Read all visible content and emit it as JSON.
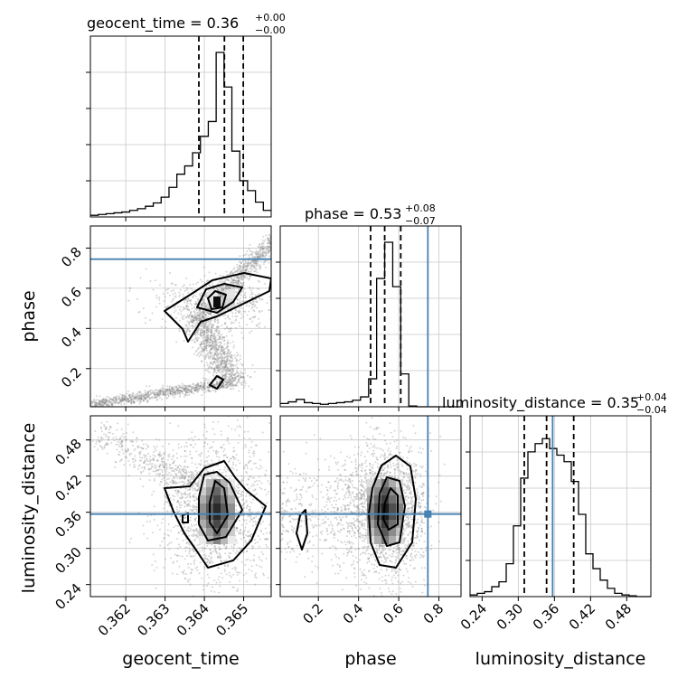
{
  "chart_data": {
    "type": "corner",
    "parameters": [
      "geocent_time",
      "phase",
      "luminosity_distance"
    ],
    "truths": {
      "geocent_time": null,
      "phase": 0.745,
      "luminosity_distance": 0.357
    },
    "titles": [
      {
        "parameter": "geocent_time",
        "text": "geocent_time = 0.36",
        "sup": "+0.00",
        "sub": "−0.00"
      },
      {
        "parameter": "phase",
        "text": "phase = 0.53",
        "sup": "+0.08",
        "sub": "−0.07"
      },
      {
        "parameter": "luminosity_distance",
        "text": "luminosity_distance = 0.35",
        "sup": "+0.04",
        "sub": "−0.04"
      }
    ],
    "axes": {
      "geocent_time": {
        "range": [
          0.3611,
          0.3657
        ],
        "ticks": [
          "0.362",
          "0.363",
          "0.364",
          "0.365"
        ],
        "tick_values": [
          0.362,
          0.363,
          0.364,
          0.365
        ],
        "label": "geocent_time"
      },
      "phase": {
        "range": [
          0.01,
          0.91
        ],
        "ticks": [
          "0.2",
          "0.4",
          "0.6",
          "0.8"
        ],
        "tick_values": [
          0.2,
          0.4,
          0.6,
          0.8
        ],
        "label": "phase"
      },
      "luminosity_distance": {
        "range": [
          0.22,
          0.52
        ],
        "ticks": [
          "0.24",
          "0.30",
          "0.36",
          "0.42",
          "0.48"
        ],
        "tick_values": [
          0.24,
          0.3,
          0.36,
          0.42,
          0.48
        ],
        "label": "luminosity_distance"
      }
    },
    "histograms": {
      "geocent_time": {
        "quantiles": [
          0.36386,
          0.36451,
          0.36499
        ],
        "bin_edges": [
          0.3611,
          0.3613,
          0.3615,
          0.3617,
          0.3619,
          0.3621,
          0.3623,
          0.3625,
          0.3627,
          0.3629,
          0.3631,
          0.3633,
          0.3635,
          0.3637,
          0.3639,
          0.3641,
          0.3643,
          0.3645,
          0.3647,
          0.3649,
          0.3651,
          0.3653,
          0.3655,
          0.3657
        ],
        "counts": [
          0.01,
          0.015,
          0.02,
          0.025,
          0.03,
          0.04,
          0.05,
          0.065,
          0.085,
          0.12,
          0.18,
          0.26,
          0.31,
          0.39,
          0.49,
          0.58,
          1.0,
          0.79,
          0.4,
          0.22,
          0.16,
          0.09,
          0.04
        ]
      },
      "phase": {
        "quantiles": [
          0.46,
          0.53,
          0.61
        ],
        "bin_edges": [
          0.01,
          0.05,
          0.09,
          0.13,
          0.17,
          0.21,
          0.25,
          0.29,
          0.33,
          0.37,
          0.41,
          0.45,
          0.49,
          0.53,
          0.57,
          0.61,
          0.65,
          0.69,
          0.73,
          0.77,
          0.81,
          0.85,
          0.89,
          0.91
        ],
        "counts": [
          0.02,
          0.03,
          0.045,
          0.025,
          0.02,
          0.015,
          0.02,
          0.025,
          0.03,
          0.04,
          0.06,
          0.17,
          0.78,
          1.0,
          0.73,
          0.2,
          0.005,
          0.0,
          0.0,
          0.0,
          0.0,
          0.0,
          0.0
        ]
      },
      "luminosity_distance": {
        "quantiles": [
          0.31,
          0.347,
          0.392
        ],
        "bin_edges": [
          0.22,
          0.232,
          0.244,
          0.256,
          0.268,
          0.28,
          0.292,
          0.304,
          0.316,
          0.328,
          0.34,
          0.352,
          0.364,
          0.376,
          0.388,
          0.4,
          0.412,
          0.424,
          0.436,
          0.448,
          0.46,
          0.472,
          0.484,
          0.496,
          0.508,
          0.52
        ],
        "counts": [
          0.01,
          0.02,
          0.03,
          0.06,
          0.09,
          0.2,
          0.43,
          0.72,
          0.88,
          0.93,
          0.96,
          0.9,
          0.86,
          0.82,
          0.7,
          0.5,
          0.26,
          0.17,
          0.1,
          0.05,
          0.02,
          0.01,
          0.005,
          0.0,
          0.0
        ]
      }
    },
    "panels_2d": [
      {
        "x": "geocent_time",
        "y": "phase",
        "peak": [
          0.3645,
          0.54
        ]
      },
      {
        "x": "geocent_time",
        "y": "luminosity_distance",
        "peak": [
          0.3645,
          0.355
        ]
      },
      {
        "x": "phase",
        "y": "luminosity_distance",
        "peak": [
          0.53,
          0.355
        ]
      }
    ],
    "colors": {
      "truth": "#4682b4",
      "contour": "#000000",
      "grid": "#c8c8c8"
    }
  }
}
